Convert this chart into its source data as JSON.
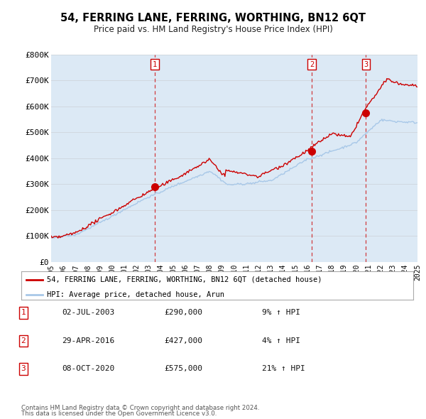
{
  "title": "54, FERRING LANE, FERRING, WORTHING, BN12 6QT",
  "subtitle": "Price paid vs. HM Land Registry's House Price Index (HPI)",
  "background_color": "#ffffff",
  "plot_bg_color": "#dce9f5",
  "grid_color": "#d0d8e0",
  "ylim": [
    0,
    800000
  ],
  "yticks": [
    0,
    100000,
    200000,
    300000,
    400000,
    500000,
    600000,
    700000,
    800000
  ],
  "ytick_labels": [
    "£0",
    "£100K",
    "£200K",
    "£300K",
    "£400K",
    "£500K",
    "£600K",
    "£700K",
    "£800K"
  ],
  "sale_color": "#cc0000",
  "hpi_color": "#a8c8e8",
  "sale_label": "54, FERRING LANE, FERRING, WORTHING, BN12 6QT (detached house)",
  "hpi_label": "HPI: Average price, detached house, Arun",
  "transactions": [
    {
      "num": 1,
      "date": "02-JUL-2003",
      "price": 290000,
      "pct": "9%",
      "direction": "↑",
      "x_year": 2003.5
    },
    {
      "num": 2,
      "date": "29-APR-2016",
      "price": 427000,
      "pct": "4%",
      "direction": "↑",
      "x_year": 2016.33
    },
    {
      "num": 3,
      "date": "08-OCT-2020",
      "price": 575000,
      "pct": "21%",
      "direction": "↑",
      "x_year": 2020.77
    }
  ],
  "footnote1": "Contains HM Land Registry data © Crown copyright and database right 2024.",
  "footnote2": "This data is licensed under the Open Government Licence v3.0.",
  "xmin": 1995,
  "xmax": 2025,
  "table_rows": [
    {
      "num": "1",
      "date": "02-JUL-2003",
      "price": "£290,000",
      "info": "9% ↑ HPI"
    },
    {
      "num": "2",
      "date": "29-APR-2016",
      "price": "£427,000",
      "info": "4% ↑ HPI"
    },
    {
      "num": "3",
      "date": "08-OCT-2020",
      "price": "£575,000",
      "info": "21% ↑ HPI"
    }
  ]
}
